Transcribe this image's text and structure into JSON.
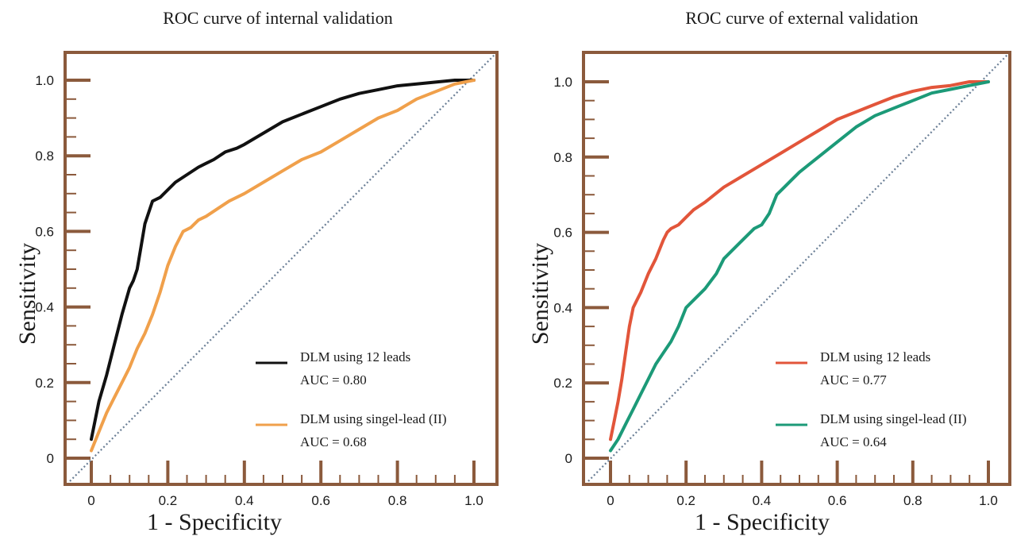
{
  "colors": {
    "frame": "#8B5A3C",
    "diagonal": "#6b7f96",
    "background": "#ffffff"
  },
  "chart_data": [
    {
      "type": "line",
      "title": "ROC curve of internal validation",
      "xlabel": "1 - Specificity",
      "ylabel": "Sensitivity",
      "xlim": [
        -0.05,
        1.07
      ],
      "ylim": [
        -0.07,
        1.07
      ],
      "x_ticks": [
        "0",
        "0.2",
        "0.4",
        "0.6",
        "0.8",
        "1.0"
      ],
      "y_ticks": [
        "0",
        "0.2",
        "0.4",
        "0.6",
        "0.8",
        "1.0"
      ],
      "grid": false,
      "reference_line": "diagonal, dotted",
      "legend_position": "bottom-right",
      "series": [
        {
          "name": "DLM using 12 leads",
          "auc_label": "AUC = 0.80",
          "color": "#111111",
          "x": [
            0,
            0.01,
            0.02,
            0.04,
            0.06,
            0.08,
            0.1,
            0.11,
            0.12,
            0.13,
            0.14,
            0.16,
            0.18,
            0.2,
            0.22,
            0.25,
            0.28,
            0.3,
            0.32,
            0.35,
            0.38,
            0.4,
            0.45,
            0.5,
            0.55,
            0.6,
            0.65,
            0.7,
            0.75,
            0.8,
            0.85,
            0.9,
            0.95,
            1.0
          ],
          "y": [
            0.05,
            0.1,
            0.15,
            0.22,
            0.3,
            0.38,
            0.45,
            0.47,
            0.5,
            0.56,
            0.62,
            0.68,
            0.69,
            0.71,
            0.73,
            0.75,
            0.77,
            0.78,
            0.79,
            0.81,
            0.82,
            0.83,
            0.86,
            0.89,
            0.91,
            0.93,
            0.95,
            0.965,
            0.975,
            0.985,
            0.99,
            0.995,
            1.0,
            1.0
          ]
        },
        {
          "name": "DLM using singel-lead (II)",
          "auc_label": "AUC = 0.68",
          "color": "#F0A04B",
          "x": [
            0,
            0.02,
            0.04,
            0.06,
            0.08,
            0.1,
            0.12,
            0.14,
            0.16,
            0.18,
            0.2,
            0.22,
            0.24,
            0.26,
            0.28,
            0.3,
            0.33,
            0.36,
            0.4,
            0.45,
            0.5,
            0.55,
            0.6,
            0.65,
            0.7,
            0.75,
            0.8,
            0.85,
            0.9,
            0.95,
            1.0
          ],
          "y": [
            0.02,
            0.07,
            0.12,
            0.16,
            0.2,
            0.24,
            0.29,
            0.33,
            0.38,
            0.44,
            0.51,
            0.56,
            0.6,
            0.61,
            0.63,
            0.64,
            0.66,
            0.68,
            0.7,
            0.73,
            0.76,
            0.79,
            0.81,
            0.84,
            0.87,
            0.9,
            0.92,
            0.95,
            0.97,
            0.99,
            1.0
          ]
        }
      ]
    },
    {
      "type": "line",
      "title": "ROC curve of external validation",
      "xlabel": "1 - Specificity",
      "ylabel": "Sensitivity",
      "xlim": [
        -0.07,
        1.07
      ],
      "ylim": [
        -0.07,
        1.07
      ],
      "x_ticks": [
        "0",
        "0.2",
        "0.4",
        "0.6",
        "0.8",
        "1.0"
      ],
      "y_ticks": [
        "0",
        "0.2",
        "0.4",
        "0.6",
        "0.8",
        "1.0"
      ],
      "grid": false,
      "reference_line": "diagonal, dotted",
      "legend_position": "bottom-right",
      "series": [
        {
          "name": "DLM using 12 leads",
          "auc_label": "AUC = 0.77",
          "color": "#E2553A",
          "x": [
            0,
            0.01,
            0.02,
            0.03,
            0.04,
            0.05,
            0.06,
            0.07,
            0.08,
            0.1,
            0.12,
            0.14,
            0.15,
            0.16,
            0.18,
            0.2,
            0.22,
            0.25,
            0.3,
            0.35,
            0.4,
            0.45,
            0.5,
            0.55,
            0.6,
            0.65,
            0.7,
            0.75,
            0.8,
            0.85,
            0.9,
            0.95,
            1.0
          ],
          "y": [
            0.05,
            0.1,
            0.15,
            0.21,
            0.28,
            0.35,
            0.4,
            0.42,
            0.44,
            0.49,
            0.53,
            0.58,
            0.6,
            0.61,
            0.62,
            0.64,
            0.66,
            0.68,
            0.72,
            0.75,
            0.78,
            0.81,
            0.84,
            0.87,
            0.9,
            0.92,
            0.94,
            0.96,
            0.975,
            0.985,
            0.99,
            1.0,
            1.0
          ]
        },
        {
          "name": "DLM using singel-lead (II)",
          "auc_label": "AUC = 0.64",
          "color": "#1C9A78",
          "x": [
            0,
            0.02,
            0.04,
            0.06,
            0.08,
            0.1,
            0.12,
            0.14,
            0.16,
            0.18,
            0.2,
            0.22,
            0.25,
            0.28,
            0.3,
            0.32,
            0.35,
            0.38,
            0.4,
            0.42,
            0.44,
            0.46,
            0.48,
            0.5,
            0.55,
            0.6,
            0.65,
            0.7,
            0.75,
            0.8,
            0.85,
            0.9,
            0.95,
            1.0
          ],
          "y": [
            0.02,
            0.05,
            0.09,
            0.13,
            0.17,
            0.21,
            0.25,
            0.28,
            0.31,
            0.35,
            0.4,
            0.42,
            0.45,
            0.49,
            0.53,
            0.55,
            0.58,
            0.61,
            0.62,
            0.65,
            0.7,
            0.72,
            0.74,
            0.76,
            0.8,
            0.84,
            0.88,
            0.91,
            0.93,
            0.95,
            0.97,
            0.98,
            0.99,
            1.0
          ]
        }
      ]
    }
  ]
}
